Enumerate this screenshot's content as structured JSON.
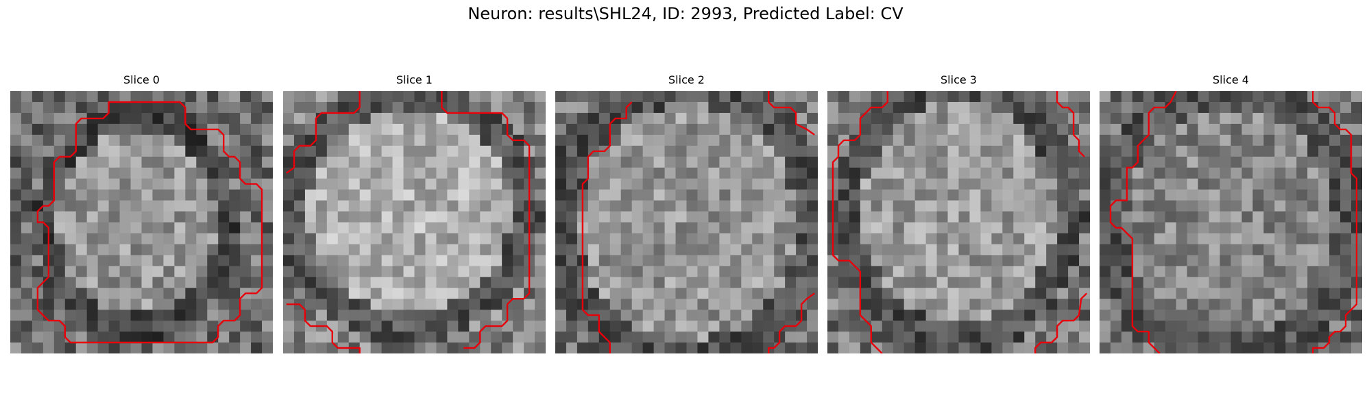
{
  "figure": {
    "suptitle": "Neuron: results\\SHL24, ID: 2993, Predicted Label: CV"
  },
  "panels": [
    {
      "title": "Slice 0"
    },
    {
      "title": "Slice 1"
    },
    {
      "title": "Slice 2"
    },
    {
      "title": "Slice 3"
    },
    {
      "title": "Slice 4"
    }
  ],
  "colors": {
    "contour": "#e8000b",
    "colormap": "gray"
  }
}
